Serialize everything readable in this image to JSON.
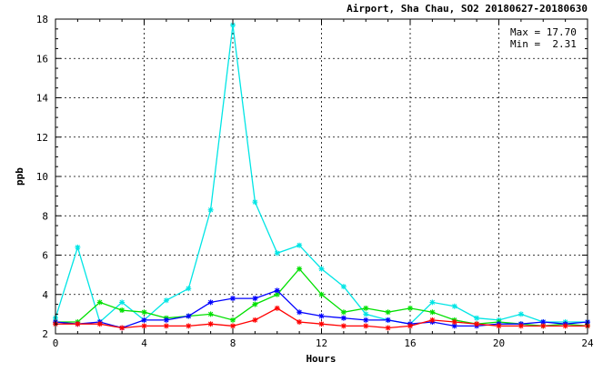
{
  "chart_data": {
    "type": "line",
    "title": "Airport, Sha Chau, SO2 20180627-20180630",
    "xlabel": "Hours",
    "ylabel": "ppb",
    "xlim": [
      0,
      24
    ],
    "ylim": [
      2,
      18
    ],
    "x_ticks": [
      0,
      4,
      8,
      12,
      16,
      20,
      24
    ],
    "y_ticks": [
      2,
      4,
      6,
      8,
      10,
      12,
      14,
      16,
      18
    ],
    "grid": true,
    "annotations": {
      "max_text": "Max = 17.70",
      "min_text": "Min =  2.31"
    },
    "x": [
      0,
      1,
      2,
      3,
      4,
      5,
      6,
      7,
      8,
      9,
      10,
      11,
      12,
      13,
      14,
      15,
      16,
      17,
      18,
      19,
      20,
      21,
      22,
      23,
      24
    ],
    "series": [
      {
        "color": "#00e5e5",
        "values": [
          2.8,
          6.4,
          2.6,
          3.6,
          2.7,
          3.7,
          4.3,
          8.3,
          17.7,
          8.7,
          6.1,
          6.5,
          5.3,
          4.4,
          3.0,
          2.7,
          2.5,
          3.6,
          3.4,
          2.8,
          2.7,
          3.0,
          2.6,
          2.6,
          2.6
        ]
      },
      {
        "color": "#00e000",
        "values": [
          2.6,
          2.6,
          3.6,
          3.2,
          3.1,
          2.8,
          2.9,
          3.0,
          2.7,
          3.5,
          4.0,
          5.3,
          4.0,
          3.1,
          3.3,
          3.1,
          3.3,
          3.1,
          2.7,
          2.5,
          2.6,
          2.5,
          2.4,
          2.5,
          2.4
        ]
      },
      {
        "color": "#0000ff",
        "values": [
          2.6,
          2.5,
          2.6,
          2.3,
          2.7,
          2.7,
          2.9,
          3.6,
          3.8,
          3.8,
          4.2,
          3.1,
          2.9,
          2.8,
          2.7,
          2.7,
          2.5,
          2.6,
          2.4,
          2.4,
          2.5,
          2.5,
          2.6,
          2.5,
          2.6
        ]
      },
      {
        "color": "#ff0000",
        "values": [
          2.5,
          2.5,
          2.5,
          2.3,
          2.4,
          2.4,
          2.4,
          2.5,
          2.4,
          2.7,
          3.3,
          2.6,
          2.5,
          2.4,
          2.4,
          2.3,
          2.4,
          2.7,
          2.6,
          2.5,
          2.4,
          2.4,
          2.4,
          2.4,
          2.4
        ]
      }
    ]
  }
}
